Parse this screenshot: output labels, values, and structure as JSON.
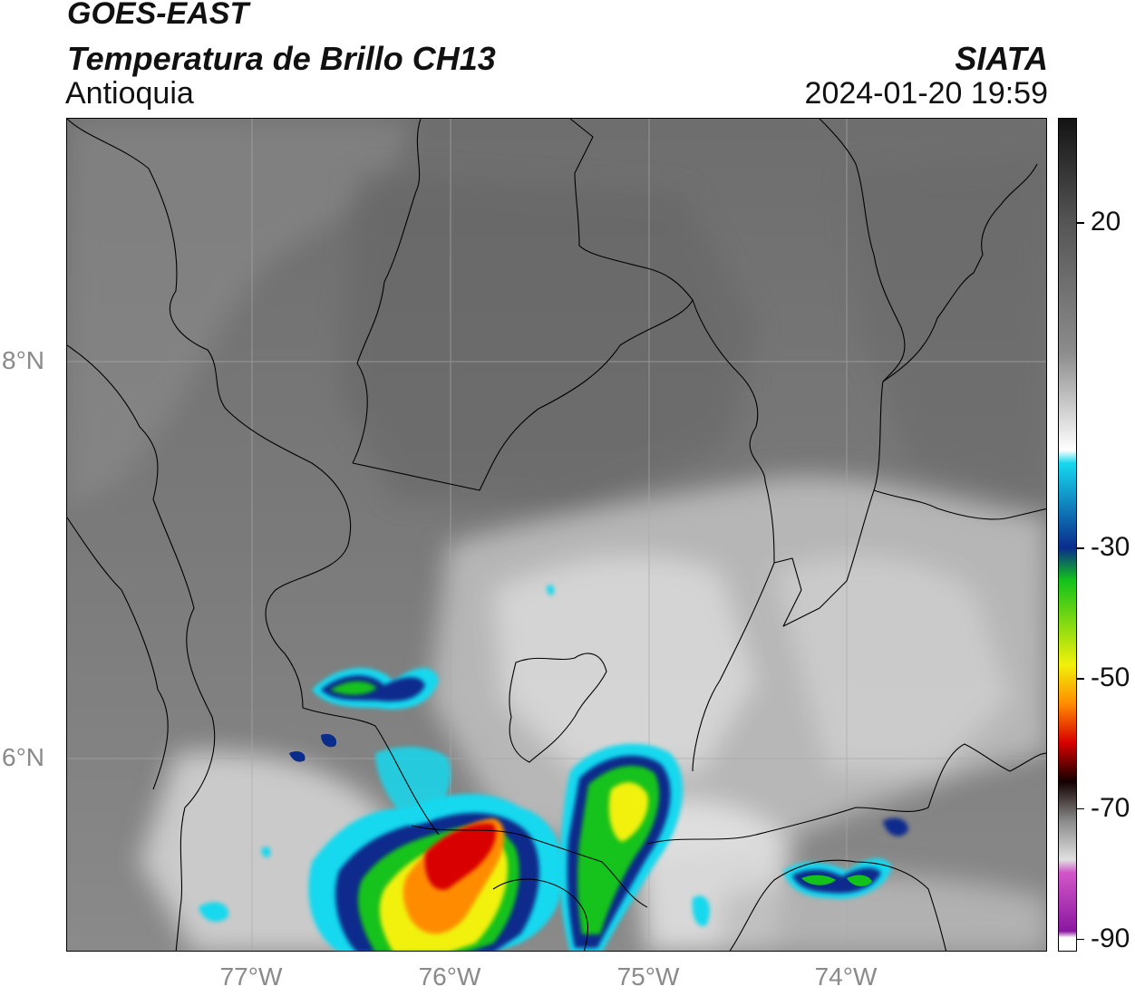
{
  "header": {
    "satellite": "GOES-EAST",
    "product": "Temperatura de Brillo CH13",
    "region": "Antioquia",
    "agency": "SIATA",
    "datetime": "2024-01-20 19:59"
  },
  "map": {
    "lat_labels": [
      "8°N",
      "6°N"
    ],
    "lon_labels": [
      "77°W",
      "76°W",
      "75°W",
      "74°W"
    ],
    "lon_range": [
      -77.95,
      -73.05
    ],
    "lat_range": [
      4.85,
      9.05
    ]
  },
  "colorbar": {
    "tick_labels": [
      "20",
      "-30",
      "-50",
      "-70",
      "-90"
    ],
    "ticks": [
      20,
      -30,
      -50,
      -70,
      -90
    ],
    "range": [
      -92,
      36
    ],
    "colors": {
      "warm_gray_top": "#141414",
      "gray_mid": "#8c8c8c",
      "white": "#ffffff",
      "cyan": "#16d8ee",
      "blue": "#0a2c8c",
      "green": "#12c21a",
      "yellow": "#f1f10a",
      "orange": "#ff8c00",
      "red": "#d80000",
      "dark": "#140000",
      "magenta": "#d256c8",
      "purple": "#8a18a0"
    }
  }
}
